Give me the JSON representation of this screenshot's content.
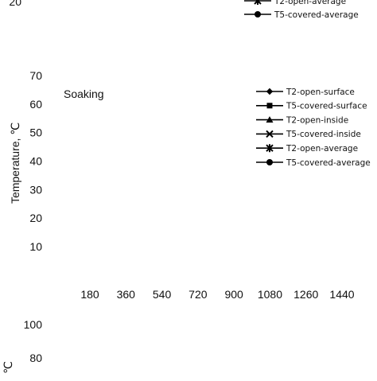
{
  "chart_data": [
    {
      "type": "line",
      "panel": "top (cropped)",
      "yticks": [
        20
      ],
      "legend_partial": [
        {
          "name": "T2-open-average",
          "marker": "star"
        },
        {
          "name": "T5-covered-average",
          "marker": "circle"
        }
      ]
    },
    {
      "type": "line",
      "panel": "middle",
      "annotation": "Soaking",
      "ylabel": "Temperature, ℃",
      "yticks": [
        10,
        20,
        30,
        40,
        50,
        60,
        70
      ],
      "ylim": [
        0,
        75
      ],
      "xticks": [
        180,
        360,
        540,
        720,
        900,
        1080,
        1260,
        1440
      ],
      "xlim": [
        0,
        1440
      ],
      "legend_position": "top-right",
      "series": [
        {
          "name": "T2-open-surface",
          "marker": "diamond",
          "values": []
        },
        {
          "name": "T5-covered-surface",
          "marker": "square",
          "values": []
        },
        {
          "name": "T2-open-inside",
          "marker": "triangle",
          "values": []
        },
        {
          "name": "T5-covered-inside",
          "marker": "x",
          "values": []
        },
        {
          "name": "T2-open-average",
          "marker": "star",
          "values": []
        },
        {
          "name": "T5-covered-average",
          "marker": "circle",
          "values": []
        }
      ]
    },
    {
      "type": "line",
      "panel": "bottom (cropped)",
      "ylabel_partial": "℃",
      "yticks": [
        80,
        100
      ]
    }
  ]
}
